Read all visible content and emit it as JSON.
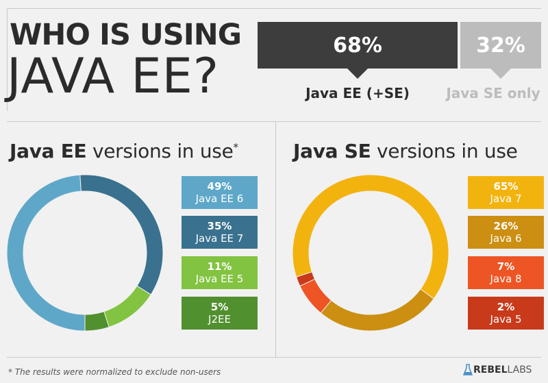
{
  "title": {
    "line1": "WHO IS USING",
    "line2": "JAVA EE?"
  },
  "overview": {
    "ee_share": "68%",
    "ee_label": "Java EE (+SE)",
    "se_share": "32%",
    "se_label": "Java SE only",
    "colors": {
      "ee": "#3d3d3d",
      "se": "#bcbcbc"
    }
  },
  "sections": {
    "ee": {
      "title_bold": "Java EE",
      "title_rest": " versions in use",
      "title_mark": "*"
    },
    "se": {
      "title_bold": "Java SE",
      "title_rest": " versions in use"
    }
  },
  "chart_data": [
    {
      "type": "pie",
      "title": "Java EE versions in use",
      "categories": [
        "Java EE 6",
        "Java EE 7",
        "Java EE 5",
        "J2EE"
      ],
      "values": [
        49,
        35,
        11,
        5
      ],
      "labels": [
        "49%",
        "35%",
        "11%",
        "5%"
      ],
      "colors": [
        "#5ea7c9",
        "#39718f",
        "#82c341",
        "#51902f"
      ],
      "legend": "right"
    },
    {
      "type": "pie",
      "title": "Java SE versions in use",
      "categories": [
        "Java 7",
        "Java 6",
        "Java 8",
        "Java 5"
      ],
      "values": [
        65,
        26,
        7,
        2
      ],
      "labels": [
        "65%",
        "26%",
        "7%",
        "2%"
      ],
      "colors": [
        "#f3b30f",
        "#cc8f12",
        "#ed5524",
        "#c93a1b"
      ],
      "legend": "right"
    }
  ],
  "footnote": "* The results were normalized to exclude non-users",
  "brand": {
    "name_bold": "REBEL",
    "name_rest": "LABS",
    "icon": "rebellabs-logo-icon"
  }
}
